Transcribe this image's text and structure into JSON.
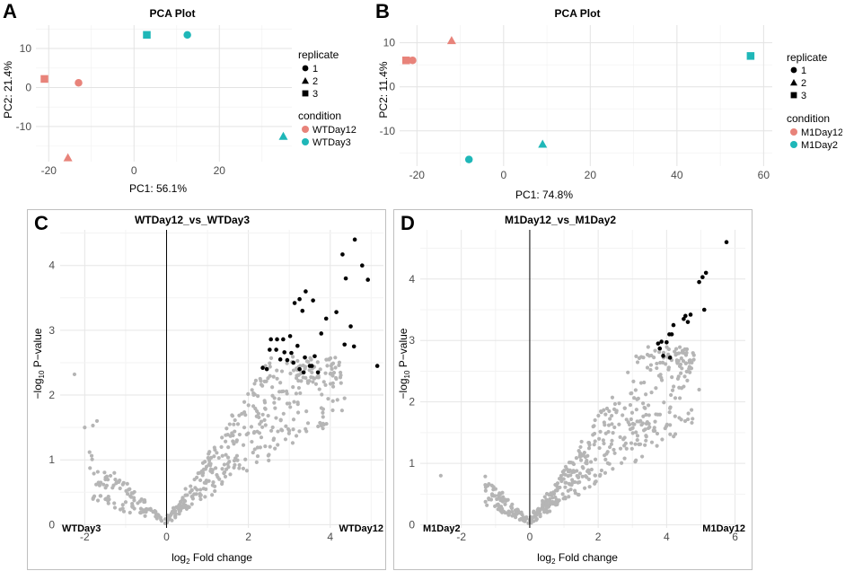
{
  "panels": {
    "A": "A",
    "B": "B",
    "C": "C",
    "D": "D"
  },
  "chart_data": [
    {
      "id": "A",
      "type": "scatter",
      "title": "PCA Plot",
      "xlabel": "PC1: 56.1%",
      "ylabel": "PC2: 21.4%",
      "xlim": [
        -23,
        37
      ],
      "ylim": [
        -19,
        16
      ],
      "xticks": [
        -20,
        0,
        20
      ],
      "yticks": [
        -10,
        0,
        10
      ],
      "legend": {
        "replicate_title": "replicate",
        "replicates": [
          "1",
          "2",
          "3"
        ],
        "condition_title": "condition",
        "conditions": [
          "WTDay12",
          "WTDay3"
        ]
      },
      "points": [
        {
          "x": -21,
          "y": 2.2,
          "condition": "WTDay12",
          "replicate": "3"
        },
        {
          "x": -13,
          "y": 1.2,
          "condition": "WTDay12",
          "replicate": "1"
        },
        {
          "x": -15.5,
          "y": -18,
          "condition": "WTDay12",
          "replicate": "2"
        },
        {
          "x": 3,
          "y": 13.5,
          "condition": "WTDay3",
          "replicate": "3"
        },
        {
          "x": 12.5,
          "y": 13.5,
          "condition": "WTDay3",
          "replicate": "1"
        },
        {
          "x": 35,
          "y": -12.5,
          "condition": "WTDay3",
          "replicate": "2"
        }
      ]
    },
    {
      "id": "B",
      "type": "scatter",
      "title": "PCA Plot",
      "xlabel": "PC1: 74.8%",
      "ylabel": "PC2: 11.4%",
      "xlim": [
        -24,
        62
      ],
      "ylim": [
        -18,
        14
      ],
      "xticks": [
        -20,
        0,
        20,
        40,
        60
      ],
      "yticks": [
        -10,
        0,
        10
      ],
      "legend": {
        "replicate_title": "replicate",
        "replicates": [
          "1",
          "2",
          "3"
        ],
        "condition_title": "condition",
        "conditions": [
          "M1Day12",
          "M1Day2"
        ]
      },
      "points": [
        {
          "x": -22.5,
          "y": 6,
          "condition": "M1Day12",
          "replicate": "3"
        },
        {
          "x": -21,
          "y": 6,
          "condition": "M1Day12",
          "replicate": "1"
        },
        {
          "x": -12,
          "y": 10.5,
          "condition": "M1Day12",
          "replicate": "2"
        },
        {
          "x": 57,
          "y": 7,
          "condition": "M1Day2",
          "replicate": "3"
        },
        {
          "x": 9,
          "y": -13,
          "condition": "M1Day2",
          "replicate": "2"
        },
        {
          "x": -8,
          "y": -16.5,
          "condition": "M1Day2",
          "replicate": "1"
        }
      ]
    },
    {
      "id": "C",
      "type": "scatter",
      "title": "WTDay12_vs_WTDay3",
      "xlabel_main": "log",
      "xlabel_sub": "2",
      "xlabel_rest": " Fold change",
      "ylabel_main": "−log",
      "ylabel_sub": "10",
      "ylabel_rest": " P−value",
      "left_label": "WTDay3",
      "right_label": "WTDay12",
      "xlim": [
        -2.6,
        5.3
      ],
      "ylim": [
        -0.05,
        4.55
      ],
      "xticks": [
        -2,
        0,
        2,
        4
      ],
      "yticks": [
        0,
        1,
        2,
        3,
        4
      ],
      "significant": [
        [
          4.6,
          4.4
        ],
        [
          4.3,
          4.17
        ],
        [
          4.78,
          4.0
        ],
        [
          4.38,
          3.8
        ],
        [
          4.92,
          3.78
        ],
        [
          3.4,
          3.6
        ],
        [
          3.25,
          3.48
        ],
        [
          3.13,
          3.42
        ],
        [
          3.58,
          3.46
        ],
        [
          3.32,
          3.3
        ],
        [
          4.5,
          3.06
        ],
        [
          3.9,
          3.18
        ],
        [
          4.15,
          3.28
        ],
        [
          3.78,
          2.95
        ],
        [
          4.58,
          2.75
        ],
        [
          4.35,
          2.78
        ],
        [
          2.55,
          2.86
        ],
        [
          2.7,
          2.86
        ],
        [
          2.85,
          2.86
        ],
        [
          3.02,
          2.91
        ],
        [
          3.2,
          2.76
        ],
        [
          2.52,
          2.7
        ],
        [
          2.68,
          2.7
        ],
        [
          2.88,
          2.66
        ],
        [
          3.05,
          2.65
        ],
        [
          2.78,
          2.55
        ],
        [
          2.95,
          2.54
        ],
        [
          3.38,
          2.58
        ],
        [
          2.35,
          2.42
        ],
        [
          2.45,
          2.4
        ],
        [
          3.1,
          2.5
        ],
        [
          3.5,
          2.45
        ],
        [
          3.35,
          2.35
        ],
        [
          3.7,
          2.35
        ],
        [
          3.55,
          2.45
        ],
        [
          5.15,
          2.45
        ],
        [
          3.25,
          2.4
        ],
        [
          3.62,
          2.6
        ]
      ],
      "nonsig_outliers": [
        [
          -2.25,
          2.32
        ],
        [
          4.35,
          1.95
        ],
        [
          -1.8,
          1.53
        ],
        [
          -1.7,
          1.6
        ],
        [
          -2.0,
          1.5
        ]
      ],
      "nonsig_count": 480,
      "nonsig_seed": 17
    },
    {
      "id": "D",
      "type": "scatter",
      "title": "M1Day12_vs_M1Day2",
      "xlabel_main": "log",
      "xlabel_sub": "2",
      "xlabel_rest": " Fold change",
      "ylabel_main": "−log",
      "ylabel_sub": "10",
      "ylabel_rest": " P−value",
      "left_label": "M1Day2",
      "right_label": "M1Day12",
      "xlim": [
        -3.2,
        6.3
      ],
      "ylim": [
        -0.05,
        4.8
      ],
      "xticks": [
        -2,
        0,
        2,
        4,
        6
      ],
      "yticks": [
        0,
        1,
        2,
        3,
        4
      ],
      "significant": [
        [
          5.75,
          4.6
        ],
        [
          5.15,
          4.1
        ],
        [
          5.05,
          4.03
        ],
        [
          4.95,
          3.95
        ],
        [
          5.1,
          3.5
        ],
        [
          4.7,
          3.42
        ],
        [
          4.55,
          3.4
        ],
        [
          4.5,
          3.35
        ],
        [
          4.62,
          3.3
        ],
        [
          4.2,
          3.25
        ],
        [
          4.08,
          3.1
        ],
        [
          4.15,
          3.1
        ],
        [
          3.85,
          2.98
        ],
        [
          4.0,
          2.97
        ],
        [
          3.8,
          2.87
        ],
        [
          3.9,
          2.75
        ],
        [
          4.1,
          2.72
        ],
        [
          3.75,
          2.95
        ]
      ],
      "nonsig_outliers": [
        [
          -2.6,
          0.8
        ],
        [
          -1.1,
          0.5
        ],
        [
          -1.2,
          0.43
        ],
        [
          4.95,
          2.2
        ],
        [
          4.5,
          2.25
        ]
      ],
      "nonsig_count": 520,
      "nonsig_seed": 29
    }
  ],
  "colors": {
    "cond1": "#e8837a",
    "cond2": "#1fb7b8",
    "sig": "#000000",
    "nonsig": "#b5b5b5"
  }
}
